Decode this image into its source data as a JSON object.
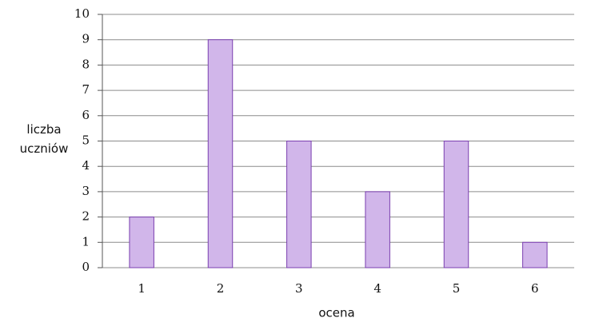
{
  "chart_data": {
    "type": "bar",
    "x_label": "ocena",
    "y_label": "liczba uczniów",
    "categories": [
      "1",
      "2",
      "3",
      "4",
      "5",
      "6"
    ],
    "values": [
      2,
      9,
      5,
      3,
      5,
      1
    ],
    "color": "#d1b6ea",
    "edge_color": "#7a3fb0",
    "ylim": [
      0,
      10
    ],
    "yticks": [
      0,
      1,
      2,
      3,
      4,
      5,
      6,
      7,
      8,
      9,
      10
    ],
    "grid": true
  }
}
